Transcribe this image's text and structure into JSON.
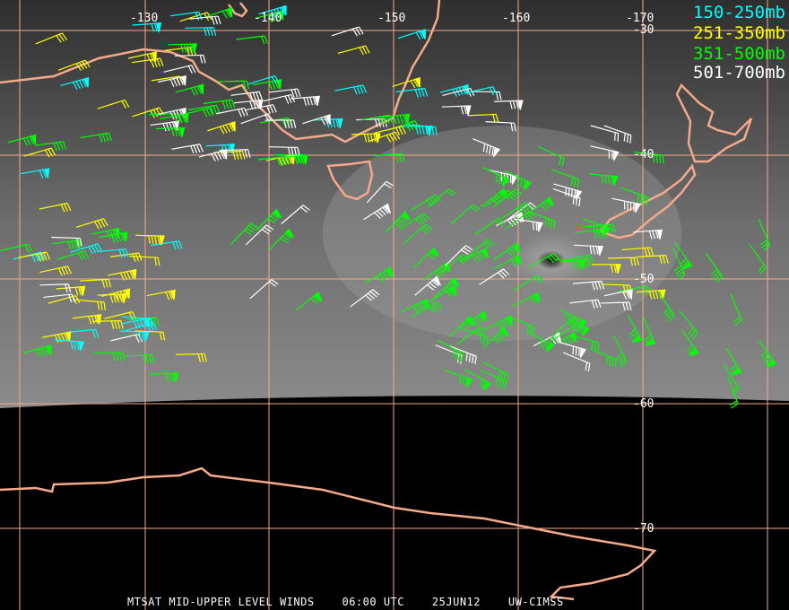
{
  "map": {
    "lon_labels": [
      "-130",
      "-140",
      "-150",
      "-160",
      "-170"
    ],
    "lat_labels": [
      "-30",
      "-40",
      "-50",
      "-60",
      "-70"
    ],
    "grid_color": "#f4a98a",
    "coast_color": "#f4a98a"
  },
  "legend": [
    {
      "label": "150-250mb",
      "color": "#00ffff"
    },
    {
      "label": "251-350mb",
      "color": "#ffff00"
    },
    {
      "label": "351-500mb",
      "color": "#00ff00"
    },
    {
      "label": "501-700mb",
      "color": "#ffffff"
    }
  ],
  "caption": {
    "product": "MTSAT MID-UPPER LEVEL WINDS",
    "time": "06:00 UTC",
    "date": "25JUN12",
    "source": "UW-CIMSS"
  }
}
